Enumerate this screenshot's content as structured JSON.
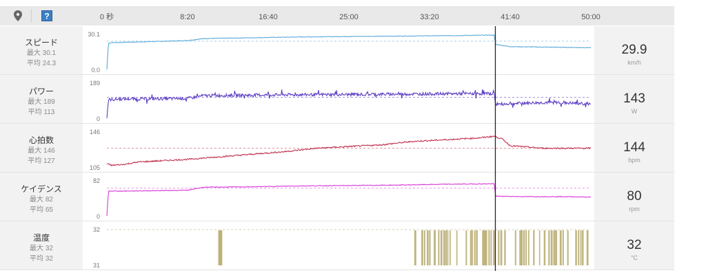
{
  "toolbar": {
    "map_pin_icon": "map-pin-icon",
    "help_icon": "help-icon"
  },
  "colors": {
    "speed": "#5aa9d8",
    "power": "#5b3cc4",
    "heart_rate": "#c0324f",
    "cadence": "#d63ad6",
    "temperature": "#b5a86a",
    "cursor": "#222222"
  },
  "time_axis": {
    "tick_labels": [
      "0 秒",
      "8:20",
      "16:40",
      "25:00",
      "33:20",
      "41:40",
      "50:00"
    ],
    "tick_seconds": [
      0,
      500,
      1000,
      1500,
      2000,
      2500,
      3000
    ],
    "cursor_time_seconds": 2408
  },
  "panels": [
    {
      "key": "speed",
      "name": "スピード",
      "max_label": "最大 30.1",
      "avg_label": "平均 24.3",
      "y_top_label": "30.1",
      "y_bottom_label": "0.0",
      "ymin": 0,
      "ymax": 30.1,
      "avg": 24.3,
      "current_value": "29.9",
      "unit": "km/h"
    },
    {
      "key": "power",
      "name": "パワー",
      "max_label": "最大 189",
      "avg_label": "平均 113",
      "y_top_label": "189",
      "y_bottom_label": "0",
      "ymin": 0,
      "ymax": 189,
      "avg": 113,
      "current_value": "143",
      "unit": "W"
    },
    {
      "key": "heart_rate",
      "name": "心拍数",
      "max_label": "最大 146",
      "avg_label": "平均 127",
      "y_top_label": "146",
      "y_bottom_label": "105",
      "ymin": 105,
      "ymax": 146,
      "avg": 127,
      "current_value": "144",
      "unit": "bpm"
    },
    {
      "key": "cadence",
      "name": "ケイデンス",
      "max_label": "最大 82",
      "avg_label": "平均 65",
      "y_top_label": "82",
      "y_bottom_label": "0",
      "ymin": 0,
      "ymax": 82,
      "avg": 65,
      "current_value": "80",
      "unit": "rpm"
    },
    {
      "key": "temperature",
      "name": "温度",
      "max_label": "最大 32",
      "avg_label": "平均 32",
      "y_top_label": "32",
      "y_bottom_label": "31",
      "ymin": 31,
      "ymax": 32,
      "avg": 32,
      "current_value": "32",
      "unit": "°C"
    }
  ],
  "chart_data": [
    {
      "type": "line",
      "name": "スピード",
      "x_unit": "seconds",
      "x": [
        0,
        10,
        30,
        100,
        300,
        500,
        600,
        900,
        1200,
        1500,
        1800,
        2100,
        2400,
        2410,
        2500,
        2700,
        3000
      ],
      "y": [
        0,
        22.5,
        23.0,
        23.3,
        24.0,
        24.8,
        26.5,
        27.2,
        27.9,
        28.3,
        28.6,
        29.0,
        29.5,
        21.5,
        19.6,
        19.2,
        18.7
      ],
      "ylim": [
        0,
        30.1
      ],
      "avg": 24.3
    },
    {
      "type": "line",
      "name": "パワー",
      "x_unit": "seconds",
      "x": [
        0,
        10,
        100,
        300,
        500,
        600,
        900,
        1200,
        1500,
        1800,
        2100,
        2400,
        2410,
        2600,
        2800,
        3000
      ],
      "y": [
        0,
        100,
        104,
        105,
        107,
        122,
        125,
        127,
        128,
        130,
        132,
        133,
        75,
        82,
        85,
        76
      ],
      "ylim": [
        0,
        189
      ],
      "avg": 113
    },
    {
      "type": "line",
      "name": "心拍数",
      "x_unit": "seconds",
      "x": [
        0,
        30,
        100,
        200,
        300,
        500,
        700,
        900,
        1100,
        1300,
        1500,
        1700,
        1900,
        2100,
        2300,
        2400,
        2450,
        2500,
        2700,
        3000
      ],
      "y": [
        109,
        107,
        108,
        111,
        112,
        114,
        117,
        120,
        123,
        127,
        129,
        131,
        135,
        137,
        139,
        141,
        138,
        130,
        127,
        127
      ],
      "ylim": [
        105,
        146
      ],
      "avg": 127
    },
    {
      "type": "line",
      "name": "ケイデンス",
      "x_unit": "seconds",
      "x": [
        0,
        10,
        100,
        500,
        600,
        900,
        1200,
        1500,
        1800,
        2100,
        2400,
        2410,
        2600,
        2800,
        3000
      ],
      "y": [
        0,
        58,
        58,
        60,
        67,
        68,
        70,
        71,
        72,
        74,
        75,
        46,
        45,
        45,
        44
      ],
      "ylim": [
        0,
        82
      ],
      "avg": 65
    },
    {
      "type": "bar",
      "name": "温度",
      "x_unit": "seconds",
      "description": "temperature mostly 31 °C with spikes to 32 °C",
      "spike_ranges_seconds": [
        [
          690,
          710
        ],
        [
          1900,
          3000
        ]
      ],
      "ylim": [
        31,
        32
      ],
      "avg": 32
    }
  ]
}
